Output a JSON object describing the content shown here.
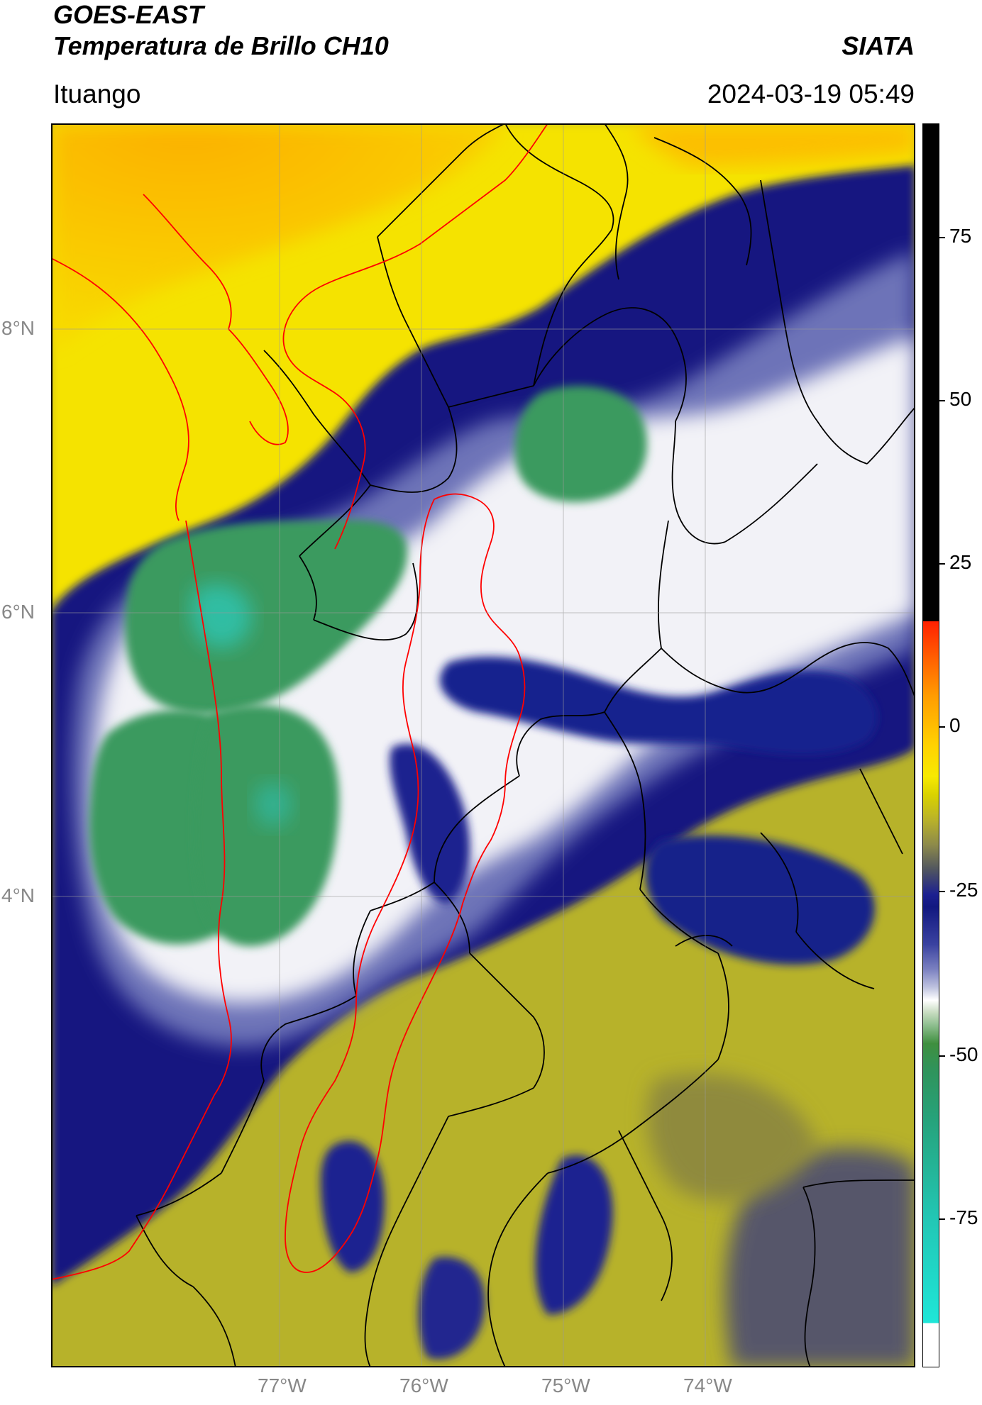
{
  "header": {
    "title_line1": "GOES-EAST",
    "title_line2": "Temperatura de Brillo CH10",
    "agency": "SIATA",
    "region": "Ituango",
    "datetime": "2024-03-19 05:49"
  },
  "map": {
    "lat_labels": [
      "8°N",
      "6°N",
      "4°N"
    ],
    "lon_labels": [
      "77°W",
      "76°W",
      "75°W",
      "74°W"
    ],
    "colors": {
      "warm_orange": "#fcb600",
      "warm_yellow": "#f5e600",
      "olive": "#b3ad2a",
      "dark_navy": "#0c1177",
      "mid_blue": "#5d65b0",
      "white_cloud": "#f4f4f8",
      "green_cold": "#2e8d58",
      "cyan_cold": "#28c8b8",
      "grey_dark": "#555560",
      "boundary_red": "#ff0000",
      "boundary_black": "#000000"
    }
  },
  "colorbar": {
    "tick_labels": [
      "75",
      "50",
      "25",
      "0",
      "-25",
      "-50",
      "-75"
    ]
  }
}
